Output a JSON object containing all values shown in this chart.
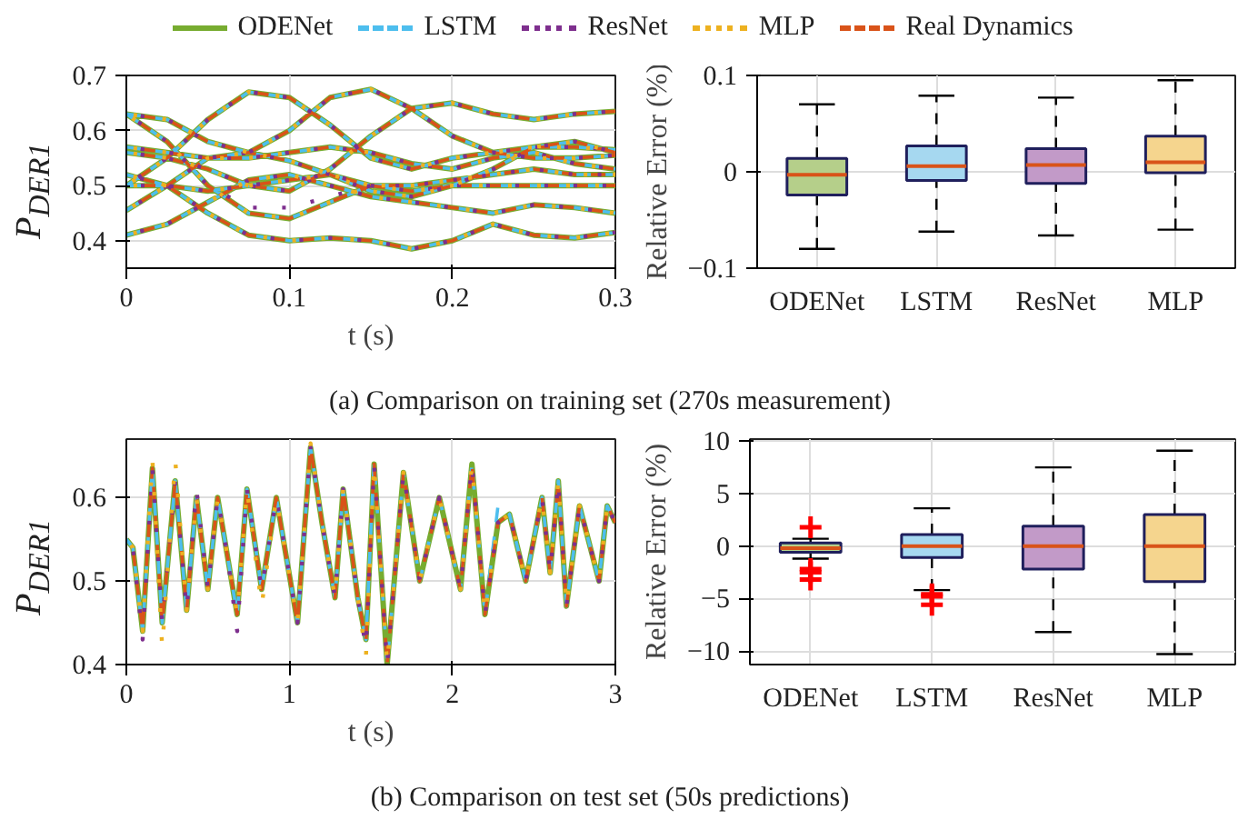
{
  "chart_data": [
    {
      "type": "line",
      "legend": "top",
      "xlabel": "t (s)",
      "ylabel": "P$_{DER1}$",
      "xlim": [
        0,
        0.3
      ],
      "xticks": [
        0,
        0.1,
        0.2,
        0.3
      ],
      "ylim": [
        0.35,
        0.7
      ],
      "yticks": [
        0.4,
        0.5,
        0.6,
        0.7
      ],
      "grid": true,
      "annotations": [
        "(a) Comparison on training set (270s measurement)"
      ],
      "x": [
        0,
        0.025,
        0.05,
        0.075,
        0.1,
        0.125,
        0.15,
        0.175,
        0.2,
        0.225,
        0.25,
        0.275,
        0.3,
        null,
        0,
        0.025,
        0.05,
        0.075,
        0.1,
        0.125,
        0.15,
        0.175,
        0.2,
        0.225,
        0.25,
        0.275,
        0.3,
        null,
        0,
        0.025,
        0.05,
        0.075,
        0.1,
        0.125,
        0.15,
        0.175,
        0.2,
        0.225,
        0.25,
        0.275,
        0.3,
        null,
        0,
        0.025,
        0.05,
        0.075,
        0.1,
        0.125,
        0.15,
        0.175,
        0.2,
        0.225,
        0.25,
        0.275,
        0.3,
        null,
        0,
        0.025,
        0.05,
        0.075,
        0.1,
        0.125,
        0.15,
        0.175,
        0.2,
        0.225,
        0.25,
        0.275,
        0.3,
        null,
        0,
        0.025,
        0.05,
        0.075,
        0.1,
        0.125,
        0.15,
        0.175,
        0.2,
        0.225,
        0.25,
        0.275,
        0.3,
        null,
        0,
        0.025,
        0.05,
        0.075,
        0.1,
        0.125,
        0.15,
        0.175,
        0.2,
        0.225,
        0.25,
        0.275,
        0.3,
        null,
        0,
        0.025,
        0.05,
        0.075,
        0.1,
        0.125,
        0.15,
        0.175,
        0.2,
        0.225,
        0.25,
        0.275,
        0.3,
        null,
        0,
        0.025,
        0.05,
        0.075,
        0.1,
        0.125,
        0.15,
        0.175,
        0.2,
        0.225,
        0.25,
        0.275,
        0.3
      ],
      "series": [
        {
          "name": "ODENet",
          "color": "#77ac30",
          "line_style": "solid",
          "values": [
            0.56,
            0.55,
            0.53,
            0.5,
            0.49,
            0.53,
            0.59,
            0.64,
            0.65,
            0.63,
            0.62,
            0.63,
            0.635,
            null,
            0.63,
            0.62,
            0.58,
            0.56,
            0.6,
            0.66,
            0.675,
            0.64,
            0.59,
            0.56,
            0.57,
            0.57,
            0.565,
            null,
            0.5,
            0.55,
            0.62,
            0.67,
            0.66,
            0.61,
            0.55,
            0.53,
            0.55,
            0.56,
            0.55,
            0.55,
            0.555,
            null,
            0.63,
            0.58,
            0.5,
            0.45,
            0.44,
            0.47,
            0.5,
            0.5,
            0.51,
            0.52,
            0.53,
            0.52,
            0.52,
            null,
            0.41,
            0.43,
            0.47,
            0.51,
            0.52,
            0.5,
            0.48,
            0.47,
            0.46,
            0.45,
            0.465,
            0.46,
            0.45,
            null,
            0.52,
            0.5,
            0.45,
            0.41,
            0.4,
            0.405,
            0.4,
            0.385,
            0.4,
            0.43,
            0.41,
            0.405,
            0.415,
            null,
            0.455,
            0.5,
            0.55,
            0.56,
            0.545,
            0.52,
            0.49,
            0.48,
            0.5,
            0.53,
            0.57,
            0.58,
            0.56,
            null,
            0.57,
            0.56,
            0.55,
            0.55,
            0.56,
            0.57,
            0.56,
            0.54,
            0.53,
            0.55,
            0.56,
            0.54,
            0.53,
            null,
            0.5,
            0.5,
            0.49,
            0.5,
            0.51,
            0.52,
            0.5,
            0.49,
            0.5,
            0.5,
            0.5,
            0.5,
            0.5
          ]
        },
        {
          "name": "LSTM",
          "color": "#4dbeee",
          "line_style": "dashed",
          "values": [
            0.56,
            0.55,
            0.53,
            0.5,
            0.49,
            0.53,
            0.59,
            0.64,
            0.65,
            0.63,
            0.62,
            0.63,
            0.635,
            null,
            0.63,
            0.62,
            0.58,
            0.56,
            0.6,
            0.66,
            0.675,
            0.64,
            0.59,
            0.56,
            0.57,
            0.57,
            0.565,
            null,
            0.5,
            0.55,
            0.62,
            0.67,
            0.66,
            0.61,
            0.55,
            0.53,
            0.55,
            0.56,
            0.55,
            0.55,
            0.555,
            null,
            0.63,
            0.58,
            0.5,
            0.45,
            0.44,
            0.47,
            0.5,
            0.5,
            0.51,
            0.52,
            0.53,
            0.52,
            0.52,
            null,
            0.41,
            0.43,
            0.47,
            0.51,
            0.52,
            0.5,
            0.48,
            0.47,
            0.46,
            0.45,
            0.465,
            0.46,
            0.45,
            null,
            0.52,
            0.5,
            0.45,
            0.41,
            0.4,
            0.405,
            0.4,
            0.385,
            0.4,
            0.43,
            0.41,
            0.405,
            0.415,
            null,
            0.455,
            0.5,
            0.55,
            0.56,
            0.545,
            0.52,
            0.49,
            0.48,
            0.5,
            0.53,
            0.57,
            0.58,
            0.56,
            null,
            0.57,
            0.56,
            0.55,
            0.55,
            0.56,
            0.57,
            0.56,
            0.54,
            0.53,
            0.55,
            0.56,
            0.54,
            0.53,
            null,
            0.5,
            0.5,
            0.49,
            0.5,
            0.51,
            0.52,
            0.5,
            0.49,
            0.5,
            0.5,
            0.5,
            0.5,
            0.5
          ]
        },
        {
          "name": "ResNet",
          "color": "#7e2f8e",
          "line_style": "dotted",
          "values": [
            0.56,
            0.55,
            0.53,
            0.5,
            0.49,
            0.53,
            0.59,
            0.64,
            0.65,
            0.63,
            0.62,
            0.63,
            0.635,
            null,
            0.63,
            0.62,
            0.58,
            0.56,
            0.6,
            0.66,
            0.675,
            0.64,
            0.59,
            0.56,
            0.57,
            0.57,
            0.565,
            null,
            0.5,
            0.55,
            0.62,
            0.67,
            0.66,
            0.61,
            0.55,
            0.53,
            0.55,
            0.56,
            0.55,
            0.55,
            0.555,
            null,
            0.63,
            0.58,
            0.5,
            0.46,
            0.46,
            0.48,
            0.5,
            0.5,
            0.51,
            0.52,
            0.53,
            0.52,
            0.52,
            null,
            0.41,
            0.43,
            0.47,
            0.51,
            0.52,
            0.5,
            0.48,
            0.47,
            0.46,
            0.45,
            0.465,
            0.46,
            0.45,
            null,
            0.52,
            0.5,
            0.45,
            0.41,
            0.4,
            0.405,
            0.4,
            0.385,
            0.4,
            0.43,
            0.41,
            0.405,
            0.415,
            null,
            0.455,
            0.5,
            0.55,
            0.56,
            0.545,
            0.52,
            0.49,
            0.48,
            0.5,
            0.53,
            0.57,
            0.58,
            0.56,
            null,
            0.57,
            0.56,
            0.55,
            0.55,
            0.56,
            0.57,
            0.56,
            0.54,
            0.53,
            0.55,
            0.56,
            0.54,
            0.53,
            null,
            0.5,
            0.5,
            0.49,
            0.5,
            0.51,
            0.52,
            0.5,
            0.49,
            0.5,
            0.5,
            0.5,
            0.5,
            0.5
          ]
        },
        {
          "name": "MLP",
          "color": "#edb120",
          "line_style": "dotted",
          "values": [
            0.56,
            0.55,
            0.53,
            0.5,
            0.49,
            0.53,
            0.59,
            0.64,
            0.65,
            0.63,
            0.62,
            0.63,
            0.635,
            null,
            0.63,
            0.62,
            0.58,
            0.56,
            0.6,
            0.66,
            0.675,
            0.64,
            0.59,
            0.56,
            0.57,
            0.57,
            0.565,
            null,
            0.5,
            0.55,
            0.62,
            0.67,
            0.66,
            0.61,
            0.55,
            0.53,
            0.55,
            0.56,
            0.55,
            0.55,
            0.555,
            null,
            0.63,
            0.58,
            0.5,
            0.45,
            0.44,
            0.47,
            0.5,
            0.5,
            0.51,
            0.52,
            0.53,
            0.52,
            0.52,
            null,
            0.41,
            0.43,
            0.47,
            0.51,
            0.52,
            0.5,
            0.48,
            0.47,
            0.46,
            0.45,
            0.465,
            0.46,
            0.45,
            null,
            0.52,
            0.5,
            0.45,
            0.41,
            0.4,
            0.405,
            0.4,
            0.385,
            0.4,
            0.43,
            0.41,
            0.405,
            0.415,
            null,
            0.455,
            0.5,
            0.55,
            0.56,
            0.545,
            0.52,
            0.49,
            0.48,
            0.5,
            0.53,
            0.57,
            0.58,
            0.56,
            null,
            0.57,
            0.56,
            0.55,
            0.55,
            0.56,
            0.57,
            0.56,
            0.54,
            0.53,
            0.55,
            0.56,
            0.54,
            0.53,
            null,
            0.5,
            0.5,
            0.49,
            0.5,
            0.51,
            0.52,
            0.5,
            0.49,
            0.5,
            0.5,
            0.5,
            0.5,
            0.5
          ]
        },
        {
          "name": "Real Dynamics",
          "color": "#d95319",
          "line_style": "dashed",
          "values": [
            0.56,
            0.55,
            0.53,
            0.5,
            0.49,
            0.53,
            0.59,
            0.64,
            0.65,
            0.63,
            0.62,
            0.63,
            0.635,
            null,
            0.63,
            0.62,
            0.58,
            0.56,
            0.6,
            0.66,
            0.675,
            0.64,
            0.59,
            0.56,
            0.57,
            0.57,
            0.565,
            null,
            0.5,
            0.55,
            0.62,
            0.67,
            0.66,
            0.61,
            0.55,
            0.53,
            0.55,
            0.56,
            0.55,
            0.55,
            0.555,
            null,
            0.63,
            0.58,
            0.5,
            0.45,
            0.44,
            0.47,
            0.5,
            0.5,
            0.51,
            0.52,
            0.53,
            0.52,
            0.52,
            null,
            0.41,
            0.43,
            0.47,
            0.51,
            0.52,
            0.5,
            0.48,
            0.47,
            0.46,
            0.45,
            0.465,
            0.46,
            0.45,
            null,
            0.52,
            0.5,
            0.45,
            0.41,
            0.4,
            0.405,
            0.4,
            0.385,
            0.4,
            0.43,
            0.41,
            0.405,
            0.415,
            null,
            0.455,
            0.5,
            0.55,
            0.56,
            0.545,
            0.52,
            0.49,
            0.48,
            0.5,
            0.53,
            0.57,
            0.58,
            0.56,
            null,
            0.57,
            0.56,
            0.55,
            0.55,
            0.56,
            0.57,
            0.56,
            0.54,
            0.53,
            0.55,
            0.56,
            0.54,
            0.53,
            null,
            0.5,
            0.5,
            0.49,
            0.5,
            0.51,
            0.52,
            0.5,
            0.49,
            0.5,
            0.5,
            0.5,
            0.5,
            0.5
          ]
        }
      ]
    },
    {
      "type": "box",
      "ylabel": "Relative Error (%)",
      "categories": [
        "ODENet",
        "LSTM",
        "ResNet",
        "MLP"
      ],
      "colors": [
        "#b5cf8a",
        "#a6d8f0",
        "#c29ac8",
        "#f5d58e"
      ],
      "ylim": [
        -0.1,
        0.1
      ],
      "yticks": [
        -0.1,
        0,
        0.1
      ],
      "grid": true,
      "boxes": [
        {
          "low": -0.08,
          "q1": -0.024,
          "median": -0.003,
          "q3": 0.014,
          "high": 0.07
        },
        {
          "low": -0.062,
          "q1": -0.009,
          "median": 0.006,
          "q3": 0.027,
          "high": 0.079
        },
        {
          "low": -0.066,
          "q1": -0.012,
          "median": 0.007,
          "q3": 0.024,
          "high": 0.077
        },
        {
          "low": -0.06,
          "q1": -0.001,
          "median": 0.01,
          "q3": 0.037,
          "high": 0.095
        }
      ]
    },
    {
      "type": "line",
      "xlabel": "t (s)",
      "ylabel": "P$_{DER1}$",
      "xlim": [
        0,
        3
      ],
      "xticks": [
        0,
        1,
        2,
        3
      ],
      "ylim": [
        0.4,
        0.67
      ],
      "yticks": [
        0.4,
        0.5,
        0.6
      ],
      "grid": true,
      "annotations": [
        "(b) Comparison on test set (50s predictions)"
      ],
      "x": [
        0,
        0.04,
        0.1,
        0.16,
        0.22,
        0.3,
        0.37,
        0.43,
        0.5,
        0.56,
        0.62,
        0.68,
        0.74,
        0.83,
        0.92,
        0.98,
        1.05,
        1.13,
        1.2,
        1.28,
        1.33,
        1.42,
        1.47,
        1.52,
        1.6,
        1.7,
        1.8,
        1.92,
        2.05,
        2.12,
        2.2,
        2.28,
        2.35,
        2.45,
        2.55,
        2.6,
        2.65,
        2.7,
        2.78,
        2.9,
        2.95,
        3.0
      ],
      "series": [
        {
          "color": "#77ac30",
          "line_style": "solid",
          "values": [
            0.55,
            0.54,
            0.44,
            0.635,
            0.45,
            0.62,
            0.465,
            0.6,
            0.49,
            0.6,
            0.53,
            0.46,
            0.61,
            0.49,
            0.6,
            0.53,
            0.45,
            0.66,
            0.57,
            0.48,
            0.61,
            0.48,
            0.43,
            0.64,
            0.4,
            0.63,
            0.5,
            0.6,
            0.49,
            0.64,
            0.46,
            0.57,
            0.58,
            0.5,
            0.6,
            0.51,
            0.62,
            0.47,
            0.59,
            0.5,
            0.59,
            0.57
          ]
        },
        {
          "color": "#4dbeee",
          "line_style": "dashed",
          "values": [
            0.55,
            0.54,
            0.44,
            0.635,
            0.45,
            0.62,
            0.465,
            0.6,
            0.49,
            0.6,
            0.53,
            0.46,
            0.61,
            0.49,
            0.6,
            0.53,
            0.45,
            0.66,
            0.57,
            0.48,
            0.61,
            0.48,
            0.43,
            0.645,
            0.4,
            0.63,
            0.5,
            0.6,
            0.49,
            0.64,
            0.46,
            0.59,
            0.58,
            0.5,
            0.6,
            0.51,
            0.62,
            0.47,
            0.59,
            0.5,
            0.59,
            0.57
          ]
        },
        {
          "color": "#7e2f8e",
          "line_style": "dotted",
          "values": [
            0.55,
            0.54,
            0.43,
            0.635,
            0.45,
            0.62,
            0.465,
            0.61,
            0.49,
            0.6,
            0.53,
            0.44,
            0.61,
            0.49,
            0.6,
            0.53,
            0.45,
            0.66,
            0.57,
            0.48,
            0.61,
            0.48,
            0.42,
            0.64,
            0.4,
            0.63,
            0.5,
            0.6,
            0.49,
            0.64,
            0.46,
            0.57,
            0.58,
            0.5,
            0.6,
            0.51,
            0.62,
            0.47,
            0.59,
            0.5,
            0.59,
            0.57
          ]
        },
        {
          "color": "#edb120",
          "line_style": "dotted",
          "values": [
            0.55,
            0.54,
            0.44,
            0.645,
            0.42,
            0.645,
            0.465,
            0.6,
            0.49,
            0.6,
            0.53,
            0.46,
            0.61,
            0.47,
            0.6,
            0.53,
            0.45,
            0.665,
            0.57,
            0.48,
            0.61,
            0.48,
            0.41,
            0.64,
            0.4,
            0.63,
            0.5,
            0.6,
            0.49,
            0.64,
            0.46,
            0.57,
            0.58,
            0.5,
            0.6,
            0.51,
            0.62,
            0.47,
            0.59,
            0.5,
            0.59,
            0.57
          ]
        },
        {
          "color": "#d95319",
          "line_style": "dashed",
          "values": [
            0.55,
            0.54,
            0.44,
            0.635,
            0.45,
            0.62,
            0.465,
            0.6,
            0.49,
            0.6,
            0.53,
            0.46,
            0.61,
            0.49,
            0.6,
            0.53,
            0.45,
            0.66,
            0.57,
            0.48,
            0.61,
            0.48,
            0.43,
            0.64,
            0.4,
            0.63,
            0.5,
            0.6,
            0.49,
            0.64,
            0.46,
            0.57,
            0.58,
            0.5,
            0.6,
            0.51,
            0.62,
            0.47,
            0.59,
            0.5,
            0.59,
            0.57
          ]
        }
      ]
    },
    {
      "type": "box",
      "ylabel": "Relative Error (%)",
      "categories": [
        "ODENet",
        "LSTM",
        "ResNet",
        "MLP"
      ],
      "colors": [
        "#b5cf8a",
        "#a6d8f0",
        "#c29ac8",
        "#f5d58e"
      ],
      "ylim": [
        -11.3,
        10.2
      ],
      "yticks": [
        -10,
        -5,
        0,
        5,
        10
      ],
      "grid": true,
      "boxes": [
        {
          "low": -1.2,
          "q1": -0.6,
          "median": -0.2,
          "q3": 0.3,
          "high": 0.7,
          "outliers": [
            1.8,
            -2.2,
            -2.5,
            -3.2
          ]
        },
        {
          "low": -4.2,
          "q1": -1.1,
          "median": 0,
          "q3": 1.1,
          "high": 3.6,
          "outliers": [
            -4.6,
            -4.8,
            -5.6
          ]
        },
        {
          "low": -8.2,
          "q1": -2.2,
          "median": 0,
          "q3": 1.9,
          "high": 7.5
        },
        {
          "low": -10.3,
          "q1": -3.4,
          "median": 0,
          "q3": 3.0,
          "high": 9.1
        }
      ]
    }
  ]
}
